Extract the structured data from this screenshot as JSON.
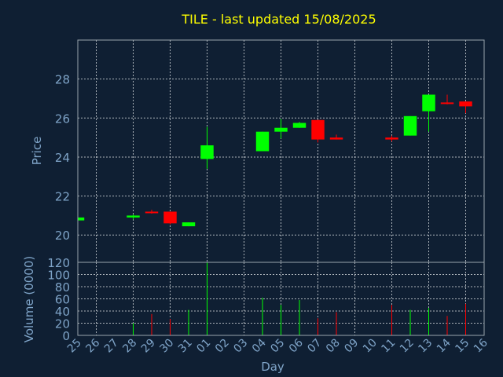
{
  "chart_data": {
    "type": "candlestick",
    "title": "TILE - last updated 15/08/2025",
    "xlabel": "Day",
    "price_panel": {
      "ylabel": "Price",
      "ylim": [
        18.6,
        30.0
      ],
      "yticks": [
        20,
        22,
        24,
        26,
        28
      ]
    },
    "volume_panel": {
      "ylabel": "Volume (0000)",
      "ylim": [
        0,
        120
      ],
      "yticks": [
        0,
        20,
        40,
        60,
        80,
        100,
        120
      ]
    },
    "x_tick_labels": [
      "25",
      "26",
      "27",
      "28",
      "29",
      "30",
      "31",
      "01",
      "02",
      "03",
      "04",
      "05",
      "06",
      "07",
      "08",
      "09",
      "10",
      "11",
      "12",
      "13",
      "14",
      "15",
      "16"
    ],
    "grid": true,
    "up_color": "#00ff00",
    "down_color": "#ff0000",
    "candles": [
      {
        "day": "25",
        "open": 20.75,
        "high": 20.9,
        "low": 20.75,
        "close": 20.9,
        "volume": 0
      },
      {
        "day": "28",
        "open": 20.9,
        "high": 21.05,
        "low": 20.8,
        "close": 21.0,
        "volume": 20
      },
      {
        "day": "29",
        "open": 21.2,
        "high": 21.3,
        "low": 21.1,
        "close": 21.15,
        "volume": 35
      },
      {
        "day": "30",
        "open": 21.2,
        "high": 21.2,
        "low": 20.55,
        "close": 20.6,
        "volume": 27
      },
      {
        "day": "31",
        "open": 20.45,
        "high": 20.65,
        "low": 20.45,
        "close": 20.65,
        "volume": 42
      },
      {
        "day": "01",
        "open": 23.9,
        "high": 25.55,
        "low": 23.4,
        "close": 24.6,
        "volume": 120
      },
      {
        "day": "04",
        "open": 24.3,
        "high": 25.3,
        "low": 24.3,
        "close": 25.3,
        "volume": 62
      },
      {
        "day": "05",
        "open": 25.3,
        "high": 25.95,
        "low": 24.95,
        "close": 25.5,
        "volume": 50
      },
      {
        "day": "06",
        "open": 25.5,
        "high": 25.8,
        "low": 25.5,
        "close": 25.75,
        "volume": 58
      },
      {
        "day": "07",
        "open": 25.9,
        "high": 25.9,
        "low": 24.75,
        "close": 24.9,
        "volume": 28
      },
      {
        "day": "08",
        "open": 25.0,
        "high": 25.15,
        "low": 24.9,
        "close": 24.9,
        "volume": 38
      },
      {
        "day": "11",
        "open": 25.0,
        "high": 25.1,
        "low": 24.8,
        "close": 24.9,
        "volume": 50
      },
      {
        "day": "12",
        "open": 25.1,
        "high": 26.1,
        "low": 25.1,
        "close": 26.1,
        "volume": 42
      },
      {
        "day": "13",
        "open": 26.35,
        "high": 27.2,
        "low": 25.3,
        "close": 27.2,
        "volume": 45
      },
      {
        "day": "14",
        "open": 26.8,
        "high": 27.2,
        "low": 26.7,
        "close": 26.75,
        "volume": 32
      },
      {
        "day": "15",
        "open": 26.85,
        "high": 26.85,
        "low": 26.25,
        "close": 26.6,
        "volume": 52
      }
    ]
  }
}
